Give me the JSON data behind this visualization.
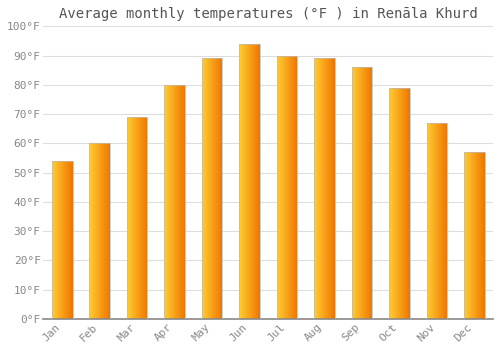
{
  "title": "Average monthly temperatures (°F ) in Renāla Khurd",
  "months": [
    "Jan",
    "Feb",
    "Mar",
    "Apr",
    "May",
    "Jun",
    "Jul",
    "Aug",
    "Sep",
    "Oct",
    "Nov",
    "Dec"
  ],
  "values": [
    54,
    60,
    69,
    80,
    89,
    94,
    90,
    89,
    86,
    79,
    67,
    57
  ],
  "ylim": [
    0,
    100
  ],
  "yticks": [
    0,
    10,
    20,
    30,
    40,
    50,
    60,
    70,
    80,
    90,
    100
  ],
  "ytick_labels": [
    "0°F",
    "10°F",
    "20°F",
    "30°F",
    "40°F",
    "50°F",
    "60°F",
    "70°F",
    "80°F",
    "90°F",
    "100°F"
  ],
  "background_color": "#FFFFFF",
  "grid_color": "#DDDDDD",
  "title_fontsize": 10,
  "tick_fontsize": 8,
  "bar_width": 0.55,
  "bar_color_left": "#FFB92E",
  "bar_color_right": "#F07800",
  "bar_edge_color": "#AAAAAA",
  "tick_color": "#888888"
}
